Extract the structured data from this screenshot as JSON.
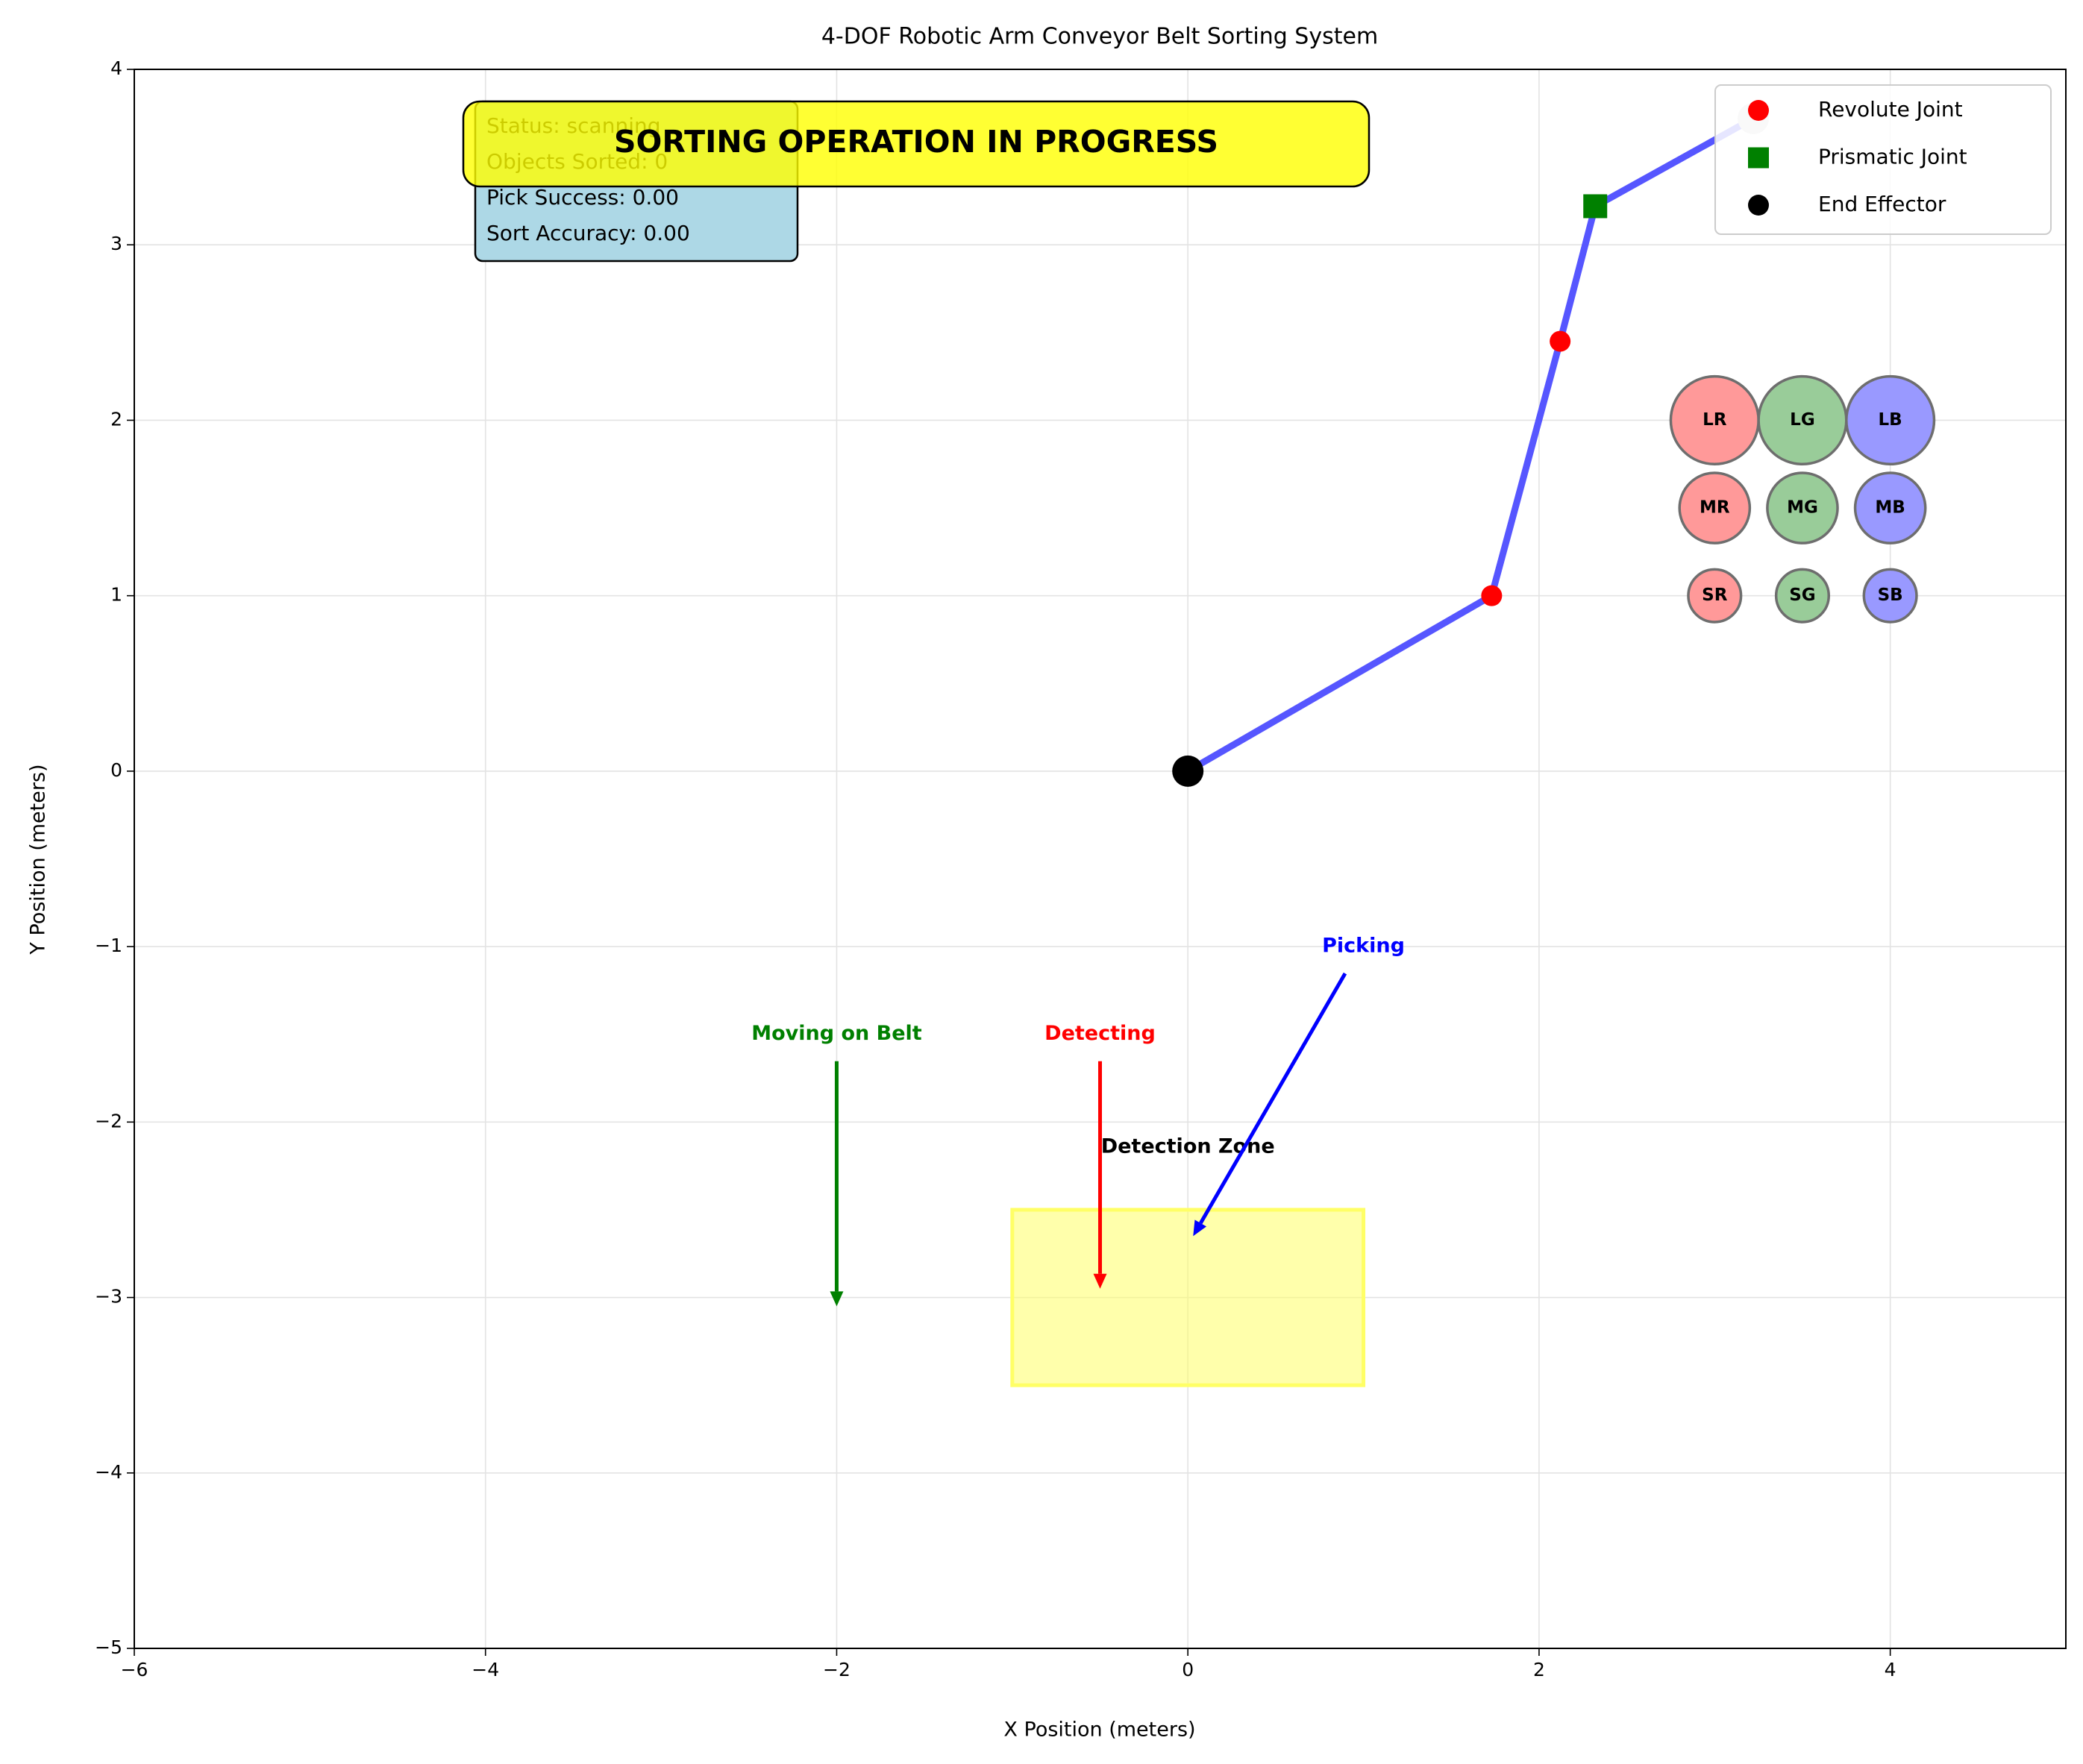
{
  "chart_data": {
    "type": "line",
    "title": "4-DOF Robotic Arm Conveyor Belt Sorting System",
    "xlabel": "X Position (meters)",
    "ylabel": "Y Position (meters)",
    "xlim": [
      -6,
      5
    ],
    "ylim": [
      -5,
      4
    ],
    "xticks": [
      {
        "value": -6,
        "label": "−6"
      },
      {
        "value": -4,
        "label": "−4"
      },
      {
        "value": -2,
        "label": "−2"
      },
      0,
      2,
      4
    ],
    "yticks": [
      {
        "value": -5,
        "label": "−5"
      },
      {
        "value": -4,
        "label": "−4"
      },
      {
        "value": -3,
        "label": "−3"
      },
      {
        "value": -2,
        "label": "−2"
      },
      {
        "value": -1,
        "label": "−1"
      },
      0,
      1,
      2,
      3,
      4
    ],
    "grid": true,
    "legend": "upper right",
    "arm": {
      "color": "#4d4dff",
      "x": [
        0,
        1.73,
        2.12,
        2.32,
        3.22
      ],
      "y": [
        0,
        1,
        2.45,
        3.22,
        3.72
      ]
    },
    "tip": {
      "color": "#d3d3d3",
      "x": 3.22,
      "y": 3.72
    },
    "series": [
      {
        "name": "Revolute Joint",
        "color": "#ff0000",
        "marker": "circle",
        "x": [
          1.73,
          2.12
        ],
        "y": [
          1,
          2.45
        ]
      },
      {
        "name": "Prismatic Joint",
        "color": "#008000",
        "marker": "square",
        "x": [
          2.32
        ],
        "y": [
          3.22
        ]
      },
      {
        "name": "End Effector",
        "color": "#000000",
        "marker": "circle",
        "x": [
          0
        ],
        "y": [
          0
        ]
      }
    ],
    "objects": [
      {
        "label": "LR",
        "x": 3,
        "y": 2,
        "r": 0.25,
        "color": "#ff9999"
      },
      {
        "label": "LG",
        "x": 3.5,
        "y": 2,
        "r": 0.25,
        "color": "#99cc99"
      },
      {
        "label": "LB",
        "x": 4,
        "y": 2,
        "r": 0.25,
        "color": "#9999ff"
      },
      {
        "label": "MR",
        "x": 3,
        "y": 1.5,
        "r": 0.2,
        "color": "#ff9999"
      },
      {
        "label": "MG",
        "x": 3.5,
        "y": 1.5,
        "r": 0.2,
        "color": "#99cc99"
      },
      {
        "label": "MB",
        "x": 4,
        "y": 1.5,
        "r": 0.2,
        "color": "#9999ff"
      },
      {
        "label": "SR",
        "x": 3,
        "y": 1,
        "r": 0.15,
        "color": "#ff9999"
      },
      {
        "label": "SG",
        "x": 3.5,
        "y": 1,
        "r": 0.15,
        "color": "#99cc99"
      },
      {
        "label": "SB",
        "x": 4,
        "y": 1,
        "r": 0.15,
        "color": "#9999ff"
      }
    ],
    "zone": {
      "label": "Detection Zone",
      "x": [
        -1,
        1
      ],
      "y": [
        -3.5,
        -2.5
      ],
      "color": "#ffff66"
    },
    "annotations": [
      {
        "text": "Moving on Belt",
        "color": "#008000",
        "xytext": [
          -2,
          -1.5
        ],
        "xy": [
          -2,
          -3.05
        ]
      },
      {
        "text": "Detecting",
        "color": "#ff0000",
        "xytext": [
          -0.5,
          -1.5
        ],
        "xy": [
          -0.5,
          -2.95
        ]
      },
      {
        "text": "Picking",
        "color": "#0000ff",
        "xytext": [
          1,
          -1
        ],
        "xy": [
          0.03,
          -2.65
        ]
      }
    ],
    "status": [
      "Status: scanning",
      "Objects Sorted: 0",
      "Pick Success: 0.00",
      "Sort Accuracy: 0.00"
    ],
    "banner": "SORTING OPERATION IN PROGRESS"
  }
}
